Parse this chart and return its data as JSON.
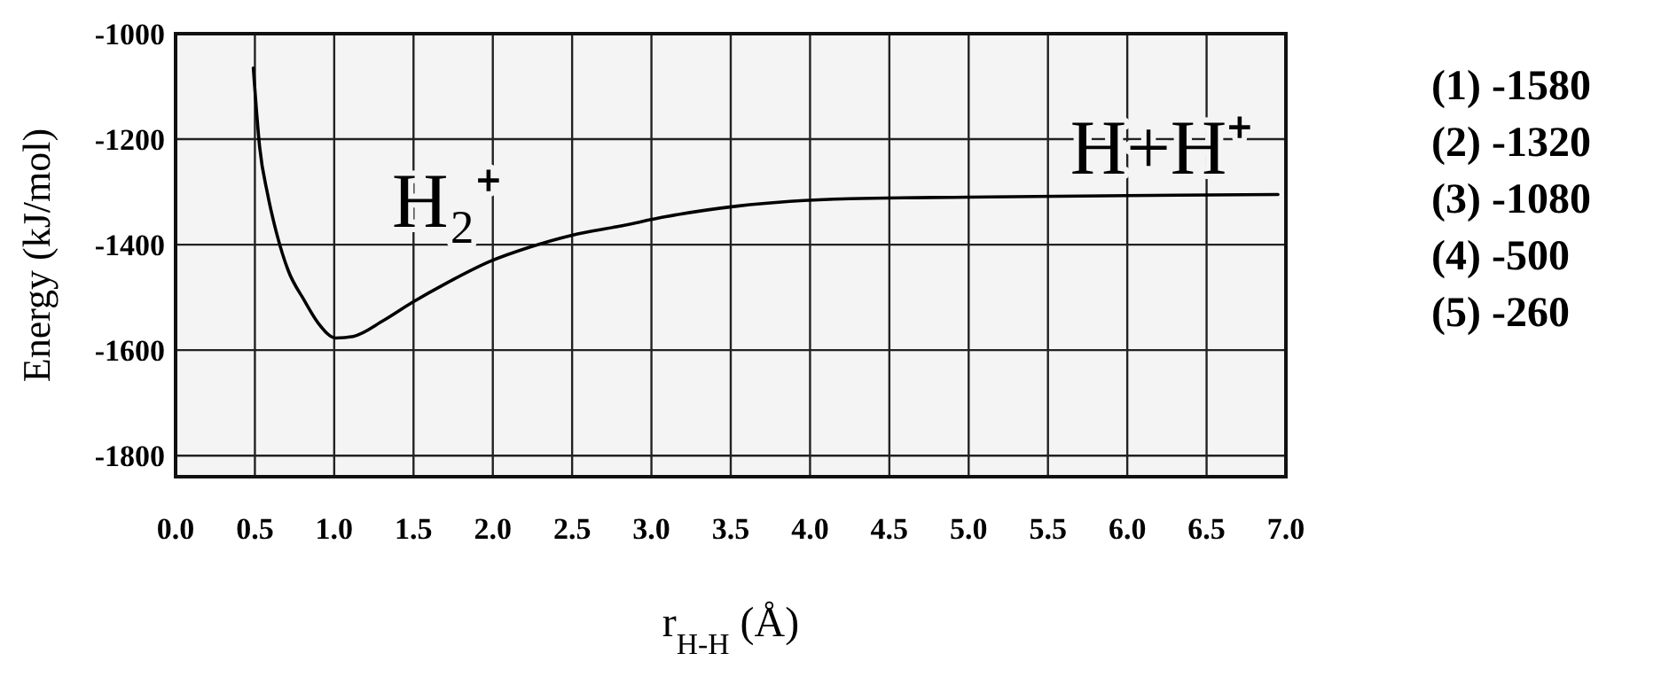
{
  "chart_data": {
    "type": "line",
    "xlabel": "r$_{H-H}$ (Å)",
    "ylabel": "Energy (kJ/mol)",
    "x": [
      0.49,
      0.53,
      0.58,
      0.64,
      0.71,
      0.81,
      0.9,
      1.01,
      1.12,
      1.31,
      1.49,
      1.72,
      1.98,
      2.24,
      2.5,
      2.8,
      3.09,
      3.54,
      4.25,
      5.0,
      6.0,
      6.95
    ],
    "series": [
      {
        "color": "#000000",
        "values": [
          -1065,
          -1215,
          -1304,
          -1382,
          -1449,
          -1505,
          -1549,
          -1577,
          -1574,
          -1544,
          -1510,
          -1471,
          -1432,
          -1404,
          -1382,
          -1365,
          -1347,
          -1327,
          -1313,
          -1310,
          -1307,
          -1305
        ]
      }
    ],
    "xlim": [
      0,
      7
    ],
    "ylim": [
      -1840,
      -1000
    ],
    "xticks": [
      {
        "value": 0,
        "label": "0.0"
      },
      0.5,
      {
        "value": 1,
        "label": "1.0"
      },
      1.5,
      {
        "value": 2,
        "label": "2.0"
      },
      2.5,
      {
        "value": 3,
        "label": "3.0"
      },
      3.5,
      {
        "value": 4,
        "label": "4.0"
      },
      4.5,
      {
        "value": 5,
        "label": "5.0"
      },
      5.5,
      {
        "value": 6,
        "label": "6.0"
      },
      6.5,
      {
        "value": 7,
        "label": "7.0"
      }
    ],
    "yticks": [
      -1800,
      -1600,
      -1400,
      -1200,
      -1000
    ],
    "grid": true,
    "marker": "none",
    "line_style": "solid",
    "annotations": [
      "H₂⁺",
      "H+H⁺",
      "(1) -1580",
      "(2) -1320",
      "(3) -1080",
      "(4) -500",
      "(5) -260"
    ]
  }
}
